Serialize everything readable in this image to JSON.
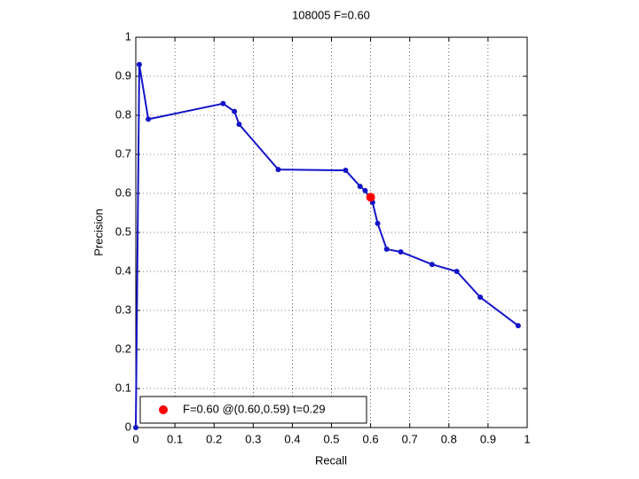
{
  "chart_data": {
    "type": "line",
    "title": "108005 F=0.60",
    "x_label": "Recall",
    "y_label": "Precision",
    "xlim": [
      0,
      1
    ],
    "ylim": [
      0,
      1
    ],
    "xticks": [
      0,
      0.1,
      0.2,
      0.3,
      0.4,
      0.5,
      0.6,
      0.7,
      0.8,
      0.9,
      1
    ],
    "yticks": [
      0,
      0.1,
      0.2,
      0.3,
      0.4,
      0.5,
      0.6,
      0.7,
      0.8,
      0.9,
      1
    ],
    "grid": true,
    "legend": "lower left",
    "series": [
      {
        "color": "#1414c8",
        "x": [
          0,
          0.009,
          0.032,
          0.223,
          0.252,
          0.264,
          0.364,
          0.536,
          0.573,
          0.586,
          0.605,
          0.618,
          0.641,
          0.677,
          0.757,
          0.82,
          0.88,
          0.977
        ],
        "values": [
          0,
          0.93,
          0.79,
          0.83,
          0.81,
          0.777,
          0.661,
          0.659,
          0.618,
          0.607,
          0.577,
          0.523,
          0.457,
          0.45,
          0.418,
          0.4,
          0.334,
          0.261
        ]
      },
      {
        "name": "F=0.60 @(0.60,0.59) t=0.29",
        "color": "#ff0000",
        "x": [
          0.6
        ],
        "values": [
          0.59
        ]
      }
    ]
  }
}
